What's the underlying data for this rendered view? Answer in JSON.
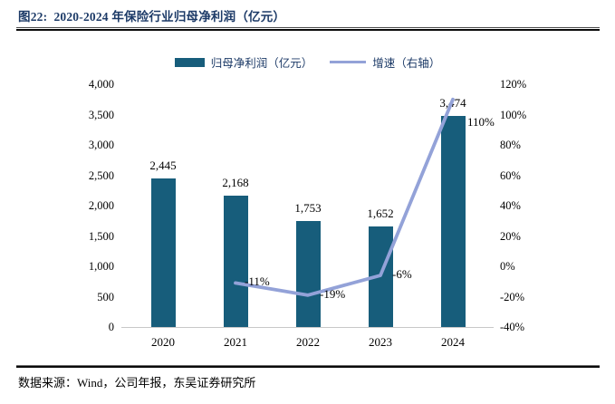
{
  "header": {
    "title": "图22:  2020-2024 年保险行业归母净利润（亿元）"
  },
  "footer": {
    "source": "数据来源：Wind，公司年报，东吴证券研究所"
  },
  "colors": {
    "bar": "#175D7B",
    "line": "#93A2D8",
    "title": "#1C3A67",
    "axis_line": "#C8C8C8"
  },
  "chart_data": {
    "type": "bar",
    "subtype": "bar-with-line-dual-axis",
    "title": "2020-2024 年保险行业归母净利润（亿元）",
    "categories": [
      "2020",
      "2021",
      "2022",
      "2023",
      "2024"
    ],
    "series": [
      {
        "name": "归母净利润（亿元）",
        "type": "bar",
        "axis": "left",
        "values": [
          2445,
          2168,
          1753,
          1652,
          3474
        ],
        "labels": [
          "2,445",
          "2,168",
          "1,753",
          "1,652",
          "3,474"
        ],
        "color": "#175D7B"
      },
      {
        "name": "增速（右轴）",
        "type": "line",
        "axis": "right",
        "values": [
          null,
          -11,
          -19,
          -6,
          110
        ],
        "labels": [
          null,
          "-11%",
          "-19%",
          "-6%",
          "110%"
        ],
        "color": "#93A2D8"
      }
    ],
    "left_axis": {
      "min": 0,
      "max": 4000,
      "step": 500,
      "ticks": [
        "0",
        "500",
        "1,000",
        "1,500",
        "2,000",
        "2,500",
        "3,000",
        "3,500",
        "4,000"
      ]
    },
    "right_axis": {
      "min": -40,
      "max": 120,
      "step": 20,
      "ticks": [
        "-40%",
        "-20%",
        "0%",
        "20%",
        "40%",
        "60%",
        "80%",
        "100%",
        "120%"
      ]
    },
    "legend_position": "top",
    "grid": false
  }
}
